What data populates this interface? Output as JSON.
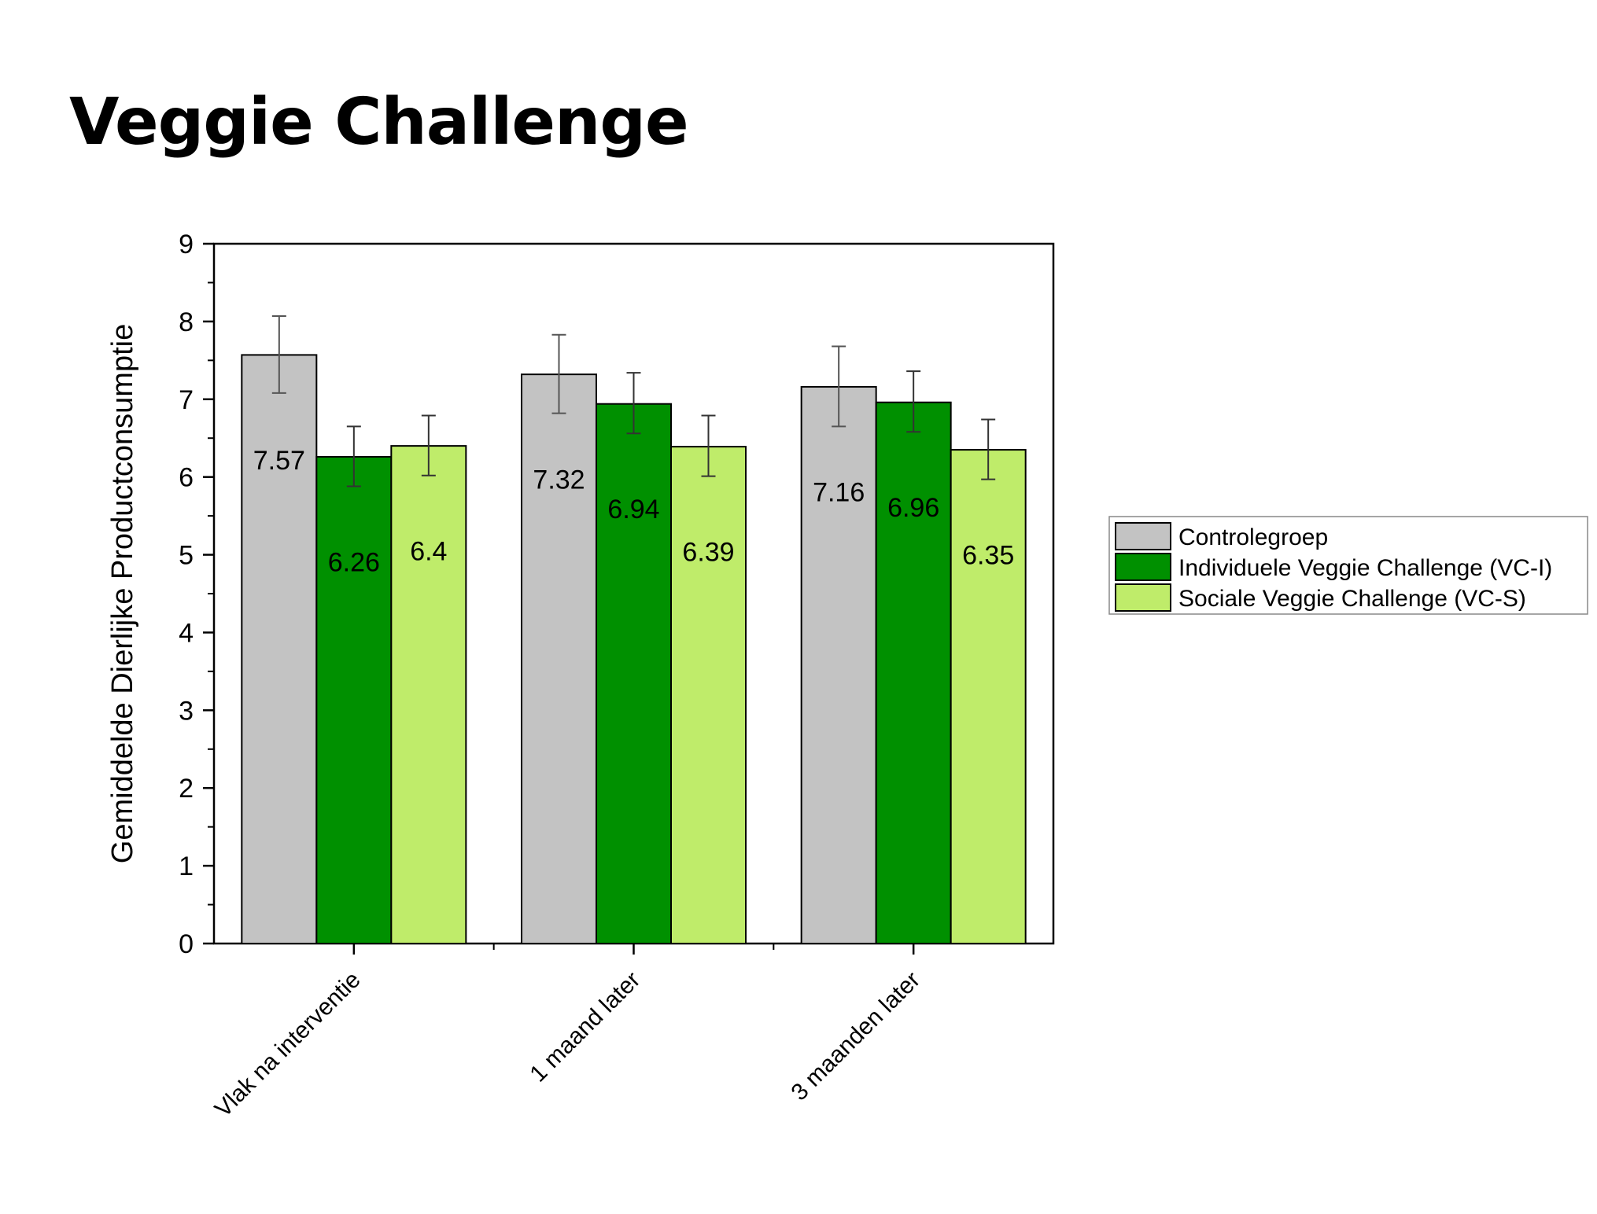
{
  "page": {
    "title": "Veggie Challenge"
  },
  "chart_data": {
    "type": "bar",
    "categories": [
      "Vlak na interventie",
      "1 maand later",
      "3 maanden later"
    ],
    "series": [
      {
        "name": "Controlegroep",
        "color": "#c3c3c3",
        "values": [
          7.57,
          7.32,
          7.16
        ],
        "labels": [
          "7.57",
          "7.32",
          "7.16"
        ],
        "err_low": [
          7.08,
          6.82,
          6.65
        ],
        "err_high": [
          8.07,
          7.83,
          7.68
        ]
      },
      {
        "name": "Individuele Veggie Challenge (VC-I)",
        "color": "#009000",
        "values": [
          6.26,
          6.94,
          6.96
        ],
        "labels": [
          "6.26",
          "6.94",
          "6.96"
        ],
        "err_low": [
          5.88,
          6.56,
          6.58
        ],
        "err_high": [
          6.65,
          7.34,
          7.36
        ]
      },
      {
        "name": "Sociale Veggie Challenge (VC-S)",
        "color": "#bfec6a",
        "values": [
          6.4,
          6.39,
          6.35
        ],
        "labels": [
          "6.4",
          "6.39",
          "6.35"
        ],
        "err_low": [
          6.02,
          6.01,
          5.97
        ],
        "err_high": [
          6.79,
          6.79,
          6.74
        ]
      }
    ],
    "title": "",
    "xlabel": "",
    "ylabel": "Gemiddelde Dierlijke Productconsumptie",
    "ylim": [
      0,
      9
    ],
    "yticks": [
      "0",
      "1",
      "2",
      "3",
      "4",
      "5",
      "6",
      "7",
      "8",
      "9"
    ],
    "grid": false,
    "legend_position": "right"
  }
}
